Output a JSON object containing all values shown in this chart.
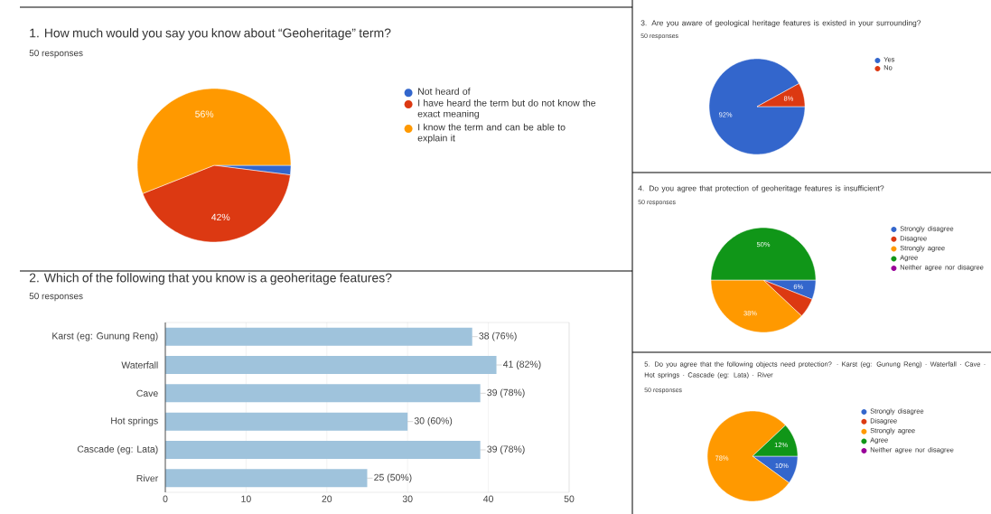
{
  "chart_data": [
    {
      "type": "pie",
      "title": "1. How much would you say you know about “Geoheritage” term?",
      "subtitle": "50 responses",
      "categories": [
        "Not heard of",
        "I have heard the term but do not know the exact meaning",
        "I know the term and can be able to explain it"
      ],
      "values": [
        2,
        42,
        56
      ],
      "colors": [
        "#3366cc",
        "#dc3912",
        "#ff9900"
      ],
      "value_labels": [
        null,
        "42%",
        "56%"
      ],
      "legend": "right"
    },
    {
      "type": "bar",
      "orientation": "horizontal",
      "title": "2. Which of the following that you know is a geoheritage features?",
      "subtitle": "50 responses",
      "categories": [
        "Karst (eg: Gunung Reng)",
        "Waterfall",
        "Cave",
        "Hot springs",
        "Cascade (eg: Lata)",
        "River"
      ],
      "values": [
        38,
        41,
        39,
        30,
        39,
        25
      ],
      "color": "#9fc3dc",
      "value_labels": [
        "38 (76%)",
        "41 (82%)",
        "39 (78%)",
        "30 (60%)",
        "39 (78%)",
        "25 (50%)"
      ],
      "xlim": [
        0,
        50
      ],
      "xticks": [
        0,
        10,
        20,
        30,
        40,
        50
      ],
      "grid": "x"
    },
    {
      "type": "pie",
      "title": "3. Are you aware of geological heritage features is existed in your surrounding?",
      "subtitle": "50 responses",
      "categories": [
        "Yes",
        "No"
      ],
      "values": [
        92,
        8
      ],
      "colors": [
        "#3366cc",
        "#dc3912"
      ],
      "value_labels": [
        "92%",
        "8%"
      ],
      "legend": "right"
    },
    {
      "type": "pie",
      "title": "4. Do you agree that protection of geoheritage features is insufficient?",
      "subtitle": "50 responses",
      "categories": [
        "Strongly disagree",
        "Disagree",
        "Strongly agree",
        "Agree",
        "Neither agree nor disagree"
      ],
      "values": [
        6,
        6,
        38,
        50,
        0
      ],
      "colors": [
        "#3366cc",
        "#dc3912",
        "#ff9900",
        "#109618",
        "#990099"
      ],
      "value_labels": [
        "6%",
        null,
        "38%",
        "50%",
        null
      ],
      "legend": "right"
    },
    {
      "type": "pie",
      "title": "5. Do you agree that the following objects need protection? · Karst (eg: Gunung Reng) · Waterfall · Cave · Hot springs · Cascade (eg: Lata) · River",
      "subtitle": "50 responses",
      "categories": [
        "Strongly disagree",
        "Disagree",
        "Strongly agree",
        "Agree",
        "Neither agree nor disagree"
      ],
      "values": [
        10,
        0,
        78,
        12,
        0
      ],
      "colors": [
        "#3366cc",
        "#dc3912",
        "#ff9900",
        "#109618",
        "#990099"
      ],
      "value_labels": [
        "10%",
        null,
        "78%",
        "12%",
        null
      ],
      "legend": "right"
    }
  ]
}
